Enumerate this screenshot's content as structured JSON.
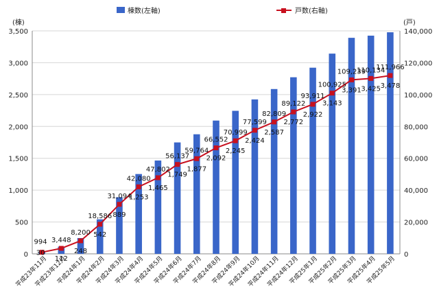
{
  "chart_data": {
    "type": "bar",
    "categories": [
      "平成23年11月",
      "平成23年12月",
      "平成24年1月",
      "平成24年2月",
      "平成24年3月",
      "平成24年4月",
      "平成24年5月",
      "平成24年6月",
      "平成24年7月",
      "平成24年8月",
      "平成24年9月",
      "平成24年10月",
      "平成24年11月",
      "平成24年12月",
      "平成25年1月",
      "平成25年2月",
      "平成25年3月",
      "平成25年4月",
      "平成25年5月"
    ],
    "series": [
      {
        "name": "棟数(左軸)",
        "type": "bar",
        "axis": "left",
        "color": "#3a66c9",
        "values": [
          30,
          112,
          248,
          542,
          889,
          1253,
          1465,
          1749,
          1877,
          2092,
          2245,
          2424,
          2587,
          2772,
          2922,
          3143,
          3391,
          3425,
          3478
        ],
        "labels": [
          "30",
          "112",
          "248",
          "542",
          "889",
          "1,253",
          "1,465",
          "1,749",
          "1,877",
          "2,092",
          "2,245",
          "2,424",
          "2,587",
          "2,772",
          "2,922",
          "3,143",
          "3,391",
          "3,425",
          "3,478"
        ]
      },
      {
        "name": "戸数(右軸)",
        "type": "line",
        "axis": "right",
        "color": "#c8101e",
        "values": [
          994,
          3448,
          8200,
          18586,
          31094,
          42080,
          47802,
          56137,
          59764,
          66552,
          70999,
          77599,
          82809,
          89122,
          93911,
          100925,
          109239,
          110134,
          111966
        ],
        "labels": [
          "994",
          "3,448",
          "8,200",
          "18,586",
          "31,094",
          "42,080",
          "47,802",
          "56,137",
          "59,764",
          "66,552",
          "70,999",
          "77,599",
          "82,809",
          "89,122",
          "93,911",
          "100,925",
          "109,239",
          "110,134",
          "111,966"
        ]
      }
    ],
    "left_axis": {
      "unit": "(棟)",
      "ylim": [
        0,
        3500
      ],
      "ticks": [
        "0",
        "500",
        "1,000",
        "1,500",
        "2,000",
        "2,500",
        "3,000",
        "3,500"
      ]
    },
    "right_axis": {
      "unit": "(戸)",
      "ylim": [
        0,
        140000
      ],
      "ticks": [
        "0",
        "20,000",
        "40,000",
        "60,000",
        "80,000",
        "100,000",
        "120,000",
        "140,000"
      ]
    },
    "grid": true,
    "legend_position": "top"
  }
}
